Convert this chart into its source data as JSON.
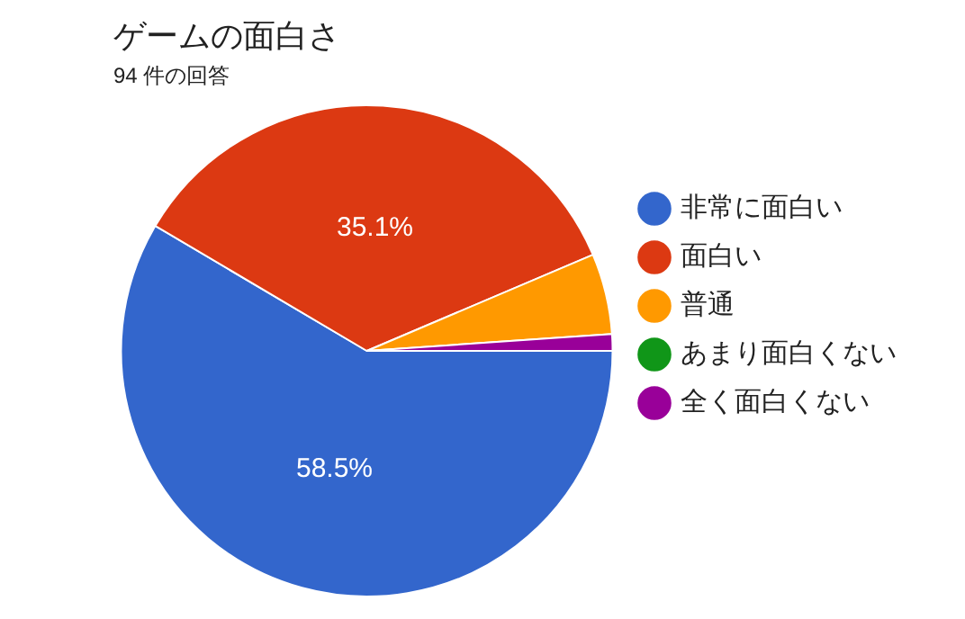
{
  "chart_data": {
    "type": "pie",
    "title": "ゲームの面白さ",
    "subtitle": "94 件の回答",
    "categories": [
      "非常に面白い",
      "面白い",
      "普通",
      "あまり面白くない",
      "全く面白くない"
    ],
    "values": [
      58.5,
      35.1,
      5.3,
      0,
      1.1
    ],
    "colors": [
      "#3366cc",
      "#dc3912",
      "#ff9900",
      "#109618",
      "#990099"
    ],
    "value_labels": [
      "58.5%",
      "35.1%",
      null,
      null,
      null
    ],
    "legend": "right"
  }
}
